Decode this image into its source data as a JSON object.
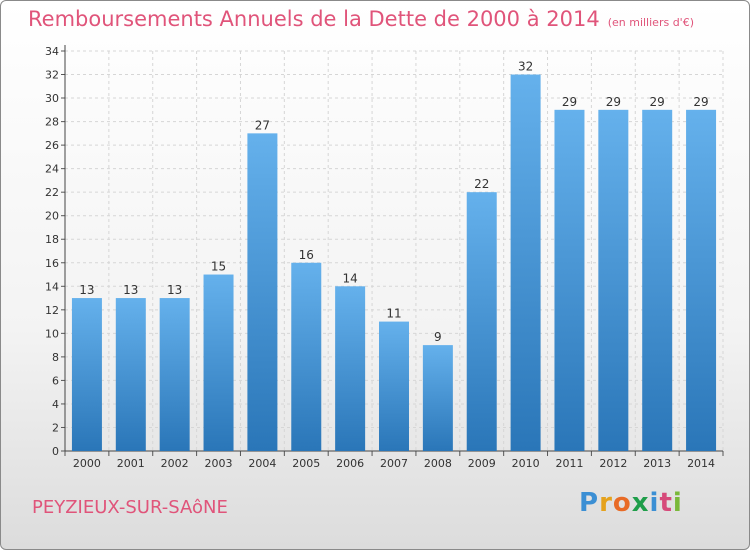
{
  "header": {
    "title": "Remboursements Annuels de la Dette de 2000 à 2014",
    "subtitle": "(en milliers d'€)"
  },
  "footer": {
    "commune": "PEYZIEUX-SUR-SAôNE",
    "logo_letters": [
      "P",
      "r",
      "o",
      "x",
      "i",
      "t",
      "i"
    ],
    "logo_colors": [
      "#3b8fd4",
      "#e5a21c",
      "#e86b26",
      "#1f9e4a",
      "#3b8fd4",
      "#d64a7a",
      "#7ab83a"
    ]
  },
  "colors": {
    "bar_top": "#65b1ec",
    "bar_bottom": "#2a76b8",
    "title": "#e0547a"
  },
  "chart_data": {
    "type": "bar",
    "title": "Remboursements Annuels de la Dette de 2000 à 2014",
    "subtitle": "(en milliers d'€)",
    "xlabel": "",
    "ylabel": "",
    "ylim": [
      0,
      34
    ],
    "yticks": [
      0,
      2,
      4,
      6,
      8,
      10,
      12,
      14,
      16,
      18,
      20,
      22,
      24,
      26,
      28,
      30,
      32,
      34
    ],
    "grid": true,
    "legend": "none",
    "categories": [
      "2000",
      "2001",
      "2002",
      "2003",
      "2004",
      "2005",
      "2006",
      "2007",
      "2008",
      "2009",
      "2010",
      "2011",
      "2012",
      "2013",
      "2014"
    ],
    "values": [
      13,
      13,
      13,
      15,
      27,
      16,
      14,
      11,
      9,
      22,
      32,
      29,
      29,
      29,
      29
    ]
  }
}
